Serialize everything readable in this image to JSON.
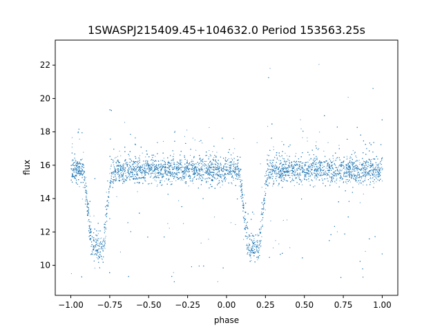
{
  "chart_data": {
    "type": "scatter",
    "title": "1SWASPJ215409.45+104632.0 Period 153563.25s",
    "xlabel": "phase",
    "ylabel": "flux",
    "xlim": [
      -1.1,
      1.1
    ],
    "ylim": [
      8.2,
      23.5
    ],
    "xticks": [
      -1.0,
      -0.75,
      -0.5,
      -0.25,
      0.0,
      0.25,
      0.5,
      0.75,
      1.0
    ],
    "xtick_labels": [
      "−1.00",
      "−0.75",
      "−0.50",
      "−0.25",
      "0.00",
      "0.25",
      "0.50",
      "0.75",
      "1.00"
    ],
    "yticks": [
      10,
      12,
      14,
      16,
      18,
      20,
      22
    ],
    "ytick_labels": [
      "10",
      "12",
      "14",
      "16",
      "18",
      "20",
      "22"
    ],
    "grid": false,
    "marker_color": "#1f77b4",
    "light_curve": {
      "baseline_flux": 15.7,
      "eclipse_phases": [
        -0.83,
        0.17
      ],
      "eclipse_min_flux": 11.0,
      "eclipse_flat_half_width": 0.035,
      "eclipse_total_half_width": 0.09,
      "phase_range": [
        -1.0,
        1.0
      ],
      "outlier_flux_range": [
        9.0,
        22.4
      ]
    }
  }
}
